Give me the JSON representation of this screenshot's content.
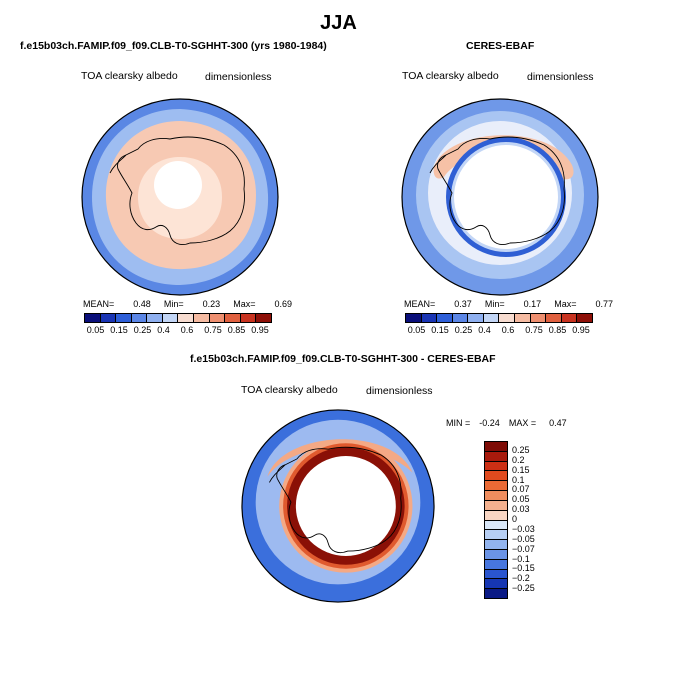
{
  "figure": {
    "title": "JJA"
  },
  "panels": [
    {
      "title": "f.e15b03ch.FAMIP.f09_f09.CLB-T0-SGHHT-300 (yrs 1980-1984)",
      "variable": "TOA clearsky albedo",
      "units": "dimensionless",
      "stats": {
        "mean_label": "MEAN=",
        "mean": "0.48",
        "min_label": "Min=",
        "min": "0.23",
        "max_label": "Max=",
        "max": "0.69"
      }
    },
    {
      "title": "CERES-EBAF",
      "variable": "TOA clearsky albedo",
      "units": "dimensionless",
      "stats": {
        "mean_label": "MEAN=",
        "mean": "0.37",
        "min_label": "Min=",
        "min": "0.17",
        "max_label": "Max=",
        "max": "0.77"
      }
    },
    {
      "title": "f.e15b03ch.FAMIP.f09_f09.CLB-T0-SGHHT-300 - CERES-EBAF",
      "variable": "TOA clearsky albedo",
      "units": "dimensionless",
      "stats": {
        "min_label": "MIN =",
        "min": "-0.24",
        "max_label": "MAX =",
        "max": "0.47"
      }
    }
  ],
  "colorbar_abs": {
    "ticks": [
      "0.05",
      "0.15",
      "0.25",
      "0.4",
      "0.6",
      "0.75",
      "0.85",
      "0.95"
    ],
    "colors": [
      "#0a0f7a",
      "#1a35b4",
      "#2e5fd8",
      "#5b86e6",
      "#8fb0f0",
      "#c3d6f6",
      "#f7dcd0",
      "#f5bba2",
      "#ee8f70",
      "#e0603f",
      "#c83320",
      "#8e1008"
    ]
  },
  "colorbar_diff": {
    "ticks": [
      "0.25",
      "0.2",
      "0.15",
      "0.1",
      "0.07",
      "0.05",
      "0.03",
      "0",
      "−0.03",
      "−0.05",
      "−0.07",
      "−0.1",
      "−0.15",
      "−0.2",
      "−0.25"
    ],
    "colors": [
      "#7e0c06",
      "#a81a0c",
      "#cc2f14",
      "#e04a1e",
      "#ea6a35",
      "#ef8d5e",
      "#f4b18f",
      "#f8d6c4",
      "#d9e7f8",
      "#b7cff4",
      "#92b4ee",
      "#6b94e6",
      "#4776de",
      "#2a55cf",
      "#1636b3",
      "#0a1a85"
    ]
  },
  "map_fields": {
    "model": {
      "ocean": "#5a87e4",
      "mid": "#9ebdf1",
      "ice": "#f7c9b3",
      "pole": "#ffffff",
      "inner_ice": "#fde4d6"
    },
    "ceres": {
      "ocean": "#6f98e8",
      "mid": "#a9c5f2",
      "ring_a": "#e9eefa",
      "ring_b": "#f6c1a6",
      "ring_c": "#2f5fd4",
      "pole": "#ffffff"
    },
    "diff": {
      "ocean": "#3b6fdc",
      "mid": "#9dbaf0",
      "ring_a": "#f4a985",
      "ring_b": "#e05a2e",
      "ring_c": "#8a1006",
      "pole": "#ffffff"
    }
  }
}
